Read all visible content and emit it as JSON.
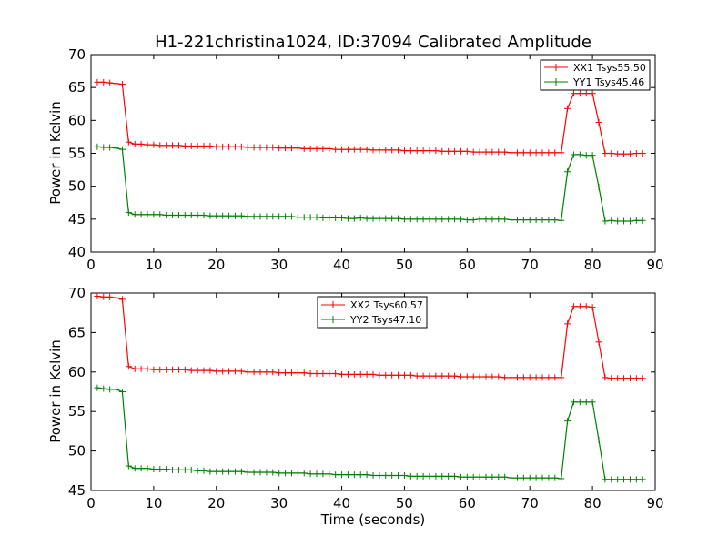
{
  "title": "H1-221christina1024, ID:37094 Calibrated Amplitude",
  "chart_data": [
    {
      "type": "line",
      "xlabel": "",
      "ylabel": "Power in Kelvin",
      "xlim": [
        0,
        90
      ],
      "ylim": [
        40,
        70
      ],
      "xticks": [
        "0",
        "10",
        "20",
        "30",
        "40",
        "50",
        "60",
        "70",
        "80",
        "90"
      ],
      "yticks": [
        "40",
        "45",
        "50",
        "55",
        "60",
        "65",
        "70"
      ],
      "grid": false,
      "legend_position": "top-right",
      "x": [
        1,
        2,
        3,
        4,
        5,
        6,
        7,
        8,
        9,
        10,
        11,
        12,
        13,
        14,
        15,
        16,
        17,
        18,
        19,
        20,
        21,
        22,
        23,
        24,
        25,
        26,
        27,
        28,
        29,
        30,
        31,
        32,
        33,
        34,
        35,
        36,
        37,
        38,
        39,
        40,
        41,
        42,
        43,
        44,
        45,
        46,
        47,
        48,
        49,
        50,
        51,
        52,
        53,
        54,
        55,
        56,
        57,
        58,
        59,
        60,
        61,
        62,
        63,
        64,
        65,
        66,
        67,
        68,
        69,
        70,
        71,
        72,
        73,
        74,
        75,
        76,
        77,
        78,
        79,
        80,
        81,
        82,
        83,
        84,
        85,
        86,
        87,
        88
      ],
      "series": [
        {
          "name": "XX1 Tsys55.50",
          "color": "#ff0000",
          "values": [
            65.8,
            65.8,
            65.7,
            65.6,
            65.5,
            56.7,
            56.4,
            56.4,
            56.3,
            56.3,
            56.2,
            56.2,
            56.2,
            56.2,
            56.1,
            56.1,
            56.1,
            56.1,
            56.1,
            56.0,
            56.0,
            56.0,
            56.0,
            56.0,
            55.9,
            55.9,
            55.9,
            55.9,
            55.9,
            55.8,
            55.8,
            55.8,
            55.8,
            55.7,
            55.7,
            55.7,
            55.7,
            55.7,
            55.6,
            55.6,
            55.6,
            55.6,
            55.6,
            55.6,
            55.5,
            55.5,
            55.5,
            55.5,
            55.5,
            55.4,
            55.4,
            55.4,
            55.4,
            55.4,
            55.4,
            55.3,
            55.3,
            55.3,
            55.3,
            55.3,
            55.2,
            55.2,
            55.2,
            55.2,
            55.2,
            55.2,
            55.1,
            55.1,
            55.1,
            55.1,
            55.1,
            55.1,
            55.1,
            55.1,
            55.1,
            61.8,
            64.1,
            64.1,
            64.1,
            64.1,
            59.7,
            55.0,
            55.0,
            54.9,
            54.9,
            54.9,
            55.0,
            55.0
          ]
        },
        {
          "name": "YY1 Tsys45.46",
          "color": "#008000",
          "values": [
            56.0,
            55.9,
            55.9,
            55.8,
            55.6,
            46.0,
            45.7,
            45.7,
            45.7,
            45.7,
            45.7,
            45.6,
            45.6,
            45.6,
            45.6,
            45.6,
            45.6,
            45.6,
            45.5,
            45.5,
            45.5,
            45.5,
            45.5,
            45.5,
            45.4,
            45.4,
            45.4,
            45.4,
            45.4,
            45.4,
            45.4,
            45.4,
            45.3,
            45.3,
            45.3,
            45.3,
            45.2,
            45.2,
            45.2,
            45.2,
            45.1,
            45.1,
            45.2,
            45.1,
            45.1,
            45.1,
            45.1,
            45.1,
            45.1,
            45.0,
            45.0,
            45.0,
            45.0,
            45.0,
            45.0,
            45.0,
            45.0,
            45.0,
            45.0,
            44.9,
            44.9,
            45.0,
            45.0,
            45.0,
            45.0,
            45.0,
            44.9,
            44.9,
            44.9,
            44.9,
            44.9,
            44.9,
            44.9,
            44.9,
            44.8,
            52.2,
            54.8,
            54.8,
            54.7,
            54.7,
            49.9,
            44.7,
            44.8,
            44.7,
            44.7,
            44.7,
            44.8,
            44.8
          ]
        }
      ]
    },
    {
      "type": "line",
      "xlabel": "Time (seconds)",
      "ylabel": "Power in Kelvin",
      "xlim": [
        0,
        90
      ],
      "ylim": [
        45,
        70
      ],
      "xticks": [
        "0",
        "10",
        "20",
        "30",
        "40",
        "50",
        "60",
        "70",
        "80",
        "90"
      ],
      "yticks": [
        "45",
        "50",
        "55",
        "60",
        "65",
        "70"
      ],
      "grid": false,
      "legend_position": "top-center",
      "x": [
        1,
        2,
        3,
        4,
        5,
        6,
        7,
        8,
        9,
        10,
        11,
        12,
        13,
        14,
        15,
        16,
        17,
        18,
        19,
        20,
        21,
        22,
        23,
        24,
        25,
        26,
        27,
        28,
        29,
        30,
        31,
        32,
        33,
        34,
        35,
        36,
        37,
        38,
        39,
        40,
        41,
        42,
        43,
        44,
        45,
        46,
        47,
        48,
        49,
        50,
        51,
        52,
        53,
        54,
        55,
        56,
        57,
        58,
        59,
        60,
        61,
        62,
        63,
        64,
        65,
        66,
        67,
        68,
        69,
        70,
        71,
        72,
        73,
        74,
        75,
        76,
        77,
        78,
        79,
        80,
        81,
        82,
        83,
        84,
        85,
        86,
        87,
        88
      ],
      "series": [
        {
          "name": "XX2 Tsys60.57",
          "color": "#ff0000",
          "values": [
            69.6,
            69.5,
            69.5,
            69.4,
            69.2,
            60.7,
            60.4,
            60.4,
            60.4,
            60.3,
            60.3,
            60.3,
            60.3,
            60.3,
            60.3,
            60.2,
            60.2,
            60.2,
            60.2,
            60.1,
            60.1,
            60.1,
            60.1,
            60.1,
            60.0,
            60.0,
            60.0,
            60.0,
            60.0,
            59.9,
            59.9,
            59.9,
            59.9,
            59.9,
            59.8,
            59.8,
            59.8,
            59.8,
            59.8,
            59.7,
            59.7,
            59.7,
            59.7,
            59.7,
            59.7,
            59.6,
            59.6,
            59.6,
            59.6,
            59.6,
            59.6,
            59.5,
            59.5,
            59.5,
            59.5,
            59.5,
            59.5,
            59.5,
            59.4,
            59.4,
            59.4,
            59.4,
            59.4,
            59.4,
            59.4,
            59.3,
            59.3,
            59.3,
            59.3,
            59.3,
            59.3,
            59.3,
            59.3,
            59.3,
            59.3,
            66.1,
            68.3,
            68.3,
            68.3,
            68.2,
            63.8,
            59.3,
            59.2,
            59.2,
            59.2,
            59.2,
            59.2,
            59.2
          ]
        },
        {
          "name": "YY2 Tsys47.10",
          "color": "#008000",
          "values": [
            58.0,
            57.9,
            57.8,
            57.8,
            57.5,
            48.1,
            47.8,
            47.8,
            47.8,
            47.7,
            47.7,
            47.7,
            47.6,
            47.6,
            47.6,
            47.6,
            47.5,
            47.5,
            47.4,
            47.4,
            47.4,
            47.4,
            47.4,
            47.4,
            47.3,
            47.3,
            47.3,
            47.3,
            47.3,
            47.2,
            47.2,
            47.2,
            47.2,
            47.2,
            47.1,
            47.1,
            47.1,
            47.1,
            47.0,
            47.0,
            47.0,
            47.0,
            47.0,
            47.0,
            46.9,
            46.9,
            46.9,
            46.9,
            46.9,
            46.9,
            46.8,
            46.8,
            46.8,
            46.8,
            46.8,
            46.8,
            46.8,
            46.8,
            46.7,
            46.7,
            46.7,
            46.7,
            46.7,
            46.7,
            46.7,
            46.7,
            46.6,
            46.6,
            46.6,
            46.6,
            46.6,
            46.6,
            46.6,
            46.6,
            46.5,
            53.8,
            56.2,
            56.2,
            56.2,
            56.2,
            51.4,
            46.4,
            46.4,
            46.4,
            46.4,
            46.4,
            46.4,
            46.4
          ]
        }
      ]
    }
  ]
}
